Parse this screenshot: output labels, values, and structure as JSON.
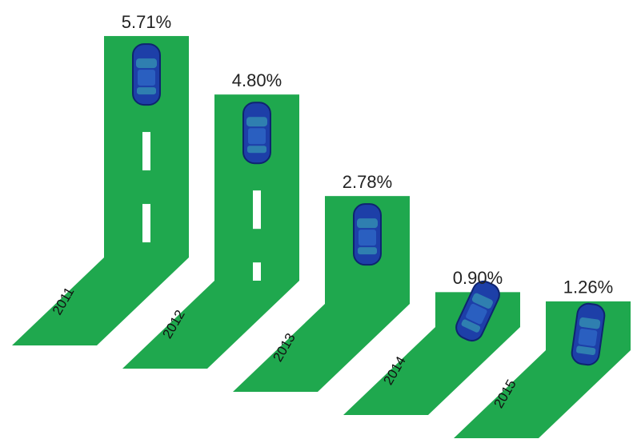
{
  "chart_data": {
    "type": "bar",
    "categories": [
      "2011",
      "2012",
      "2013",
      "2014",
      "2015"
    ],
    "values": [
      5.71,
      4.8,
      2.78,
      0.9,
      1.26
    ],
    "value_labels": [
      "5.71%",
      "4.80%",
      "2.78%",
      "0.90%",
      "1.26%"
    ],
    "color": "#1fa84e"
  }
}
